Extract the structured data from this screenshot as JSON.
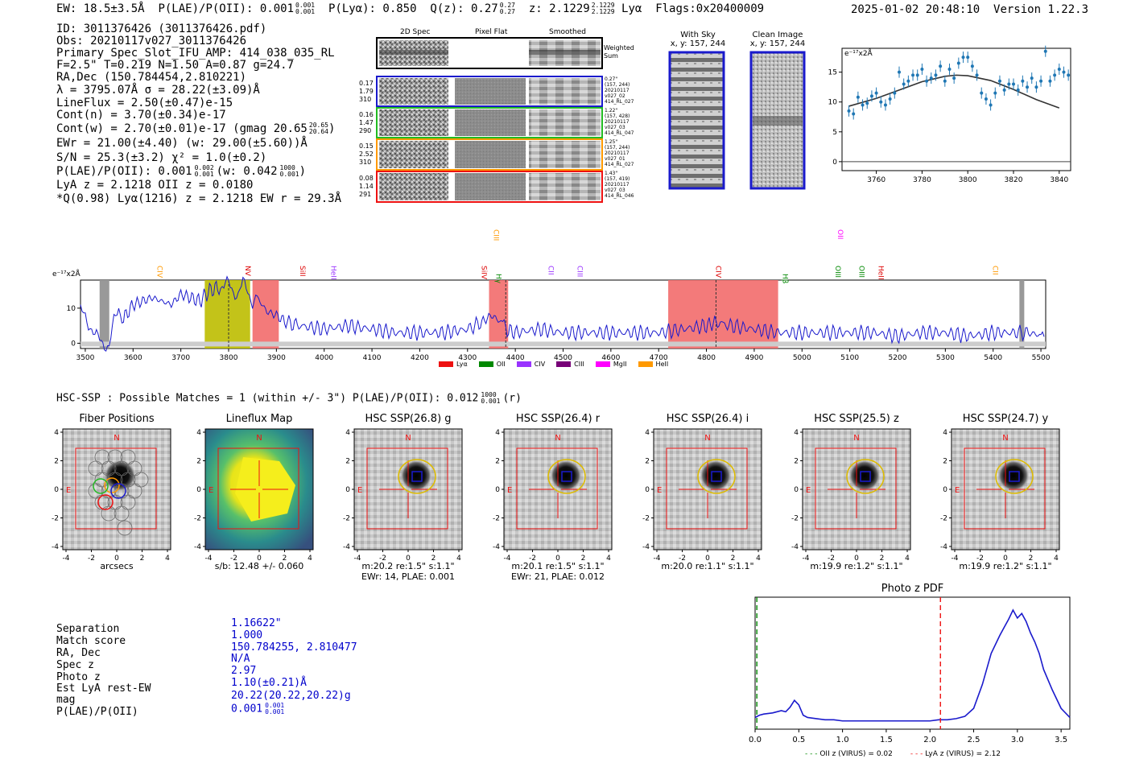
{
  "header": {
    "ew": "EW: 18.5±3.5Å",
    "plae": "P(LAE)/P(OII): 0.001",
    "plae_sup": "0.001",
    "plae_sub": "0.001",
    "plya": "P(Lyα): 0.850",
    "qz": "Q(z): 0.27",
    "qz_sup": "0.27",
    "qz_sub": "0.27",
    "z": "z: 2.1229",
    "z_sup": "2.1229",
    "z_sub": "2.1229",
    "line": "Lyα",
    "flags": "Flags:0x20400009",
    "timestamp": "2025-01-02 20:48:10",
    "version": "Version 1.22.3"
  },
  "info": {
    "id": "ID: 3011376426 (3011376426.pdf)",
    "obs": "Obs: 20210117v027_3011376426",
    "slot": "Primary Spec_Slot_IFU_AMP: 414_038_035_RL",
    "params": "F=2.5\"  T=0.219  N=1.50  A=0.87  g=24.7",
    "radec": "RA,Dec (150.784454,2.810221)",
    "lambda": "λ = 3795.07Å  σ = 28.22(±3.09)Å",
    "lineflux": "LineFlux = 2.50(±0.47)e-15",
    "contn": "Cont(n) = 3.70(±0.34)e-17",
    "contw": "Cont(w) = 2.70(±0.01)e-17 (gmag 20.65",
    "contw_sup": "20.65",
    "contw_sub": "20.64",
    "ewr": "EWr = 21.00(±4.40) (w: 29.00(±5.60))Å",
    "sn": "S/N = 25.3(±3.2)  χ² = 1.0(±0.2)",
    "plae": "P(LAE)/P(OII): 0.001",
    "plae_sup": "0.002",
    "plae_sub": "0.001",
    "plae_w": "(w: 0.042",
    "plae_w_sup": "1000",
    "plae_w_sub": "0.001",
    "lya_z": "LyA z = 2.1218   OII z = 0.0180",
    "q_line": "*Q(0.98) Lyα(1216) z = 2.1218   EW r = 29.3Å"
  },
  "cutouts": {
    "col_labels": [
      "2D Spec",
      "Pixel Flat",
      "Smoothed"
    ],
    "weighted_sum": "Weighted Sum",
    "fibers": [
      {
        "left": [
          "0.17",
          "1.79",
          "310"
        ],
        "right": [
          "0.27\"",
          "(157, 244)",
          "20210117",
          "v027_02",
          "414_RL_027"
        ],
        "color": "#1a1acc"
      },
      {
        "left": [
          "0.16",
          "1.47",
          "290"
        ],
        "right": [
          "1.22\"",
          "(157, 428)",
          "20210117",
          "v027_03",
          "414_RL_047"
        ],
        "color": "#22bb22"
      },
      {
        "left": [
          "0.15",
          "2.52",
          "310"
        ],
        "right": [
          "1.25\"",
          "(157, 244)",
          "20210117",
          "v027_01",
          "414_RL_027"
        ],
        "color": "#ff9900"
      },
      {
        "left": [
          "0.08",
          "1.14",
          "291"
        ],
        "right": [
          "1.43\"",
          "(157, 419)",
          "20210117",
          "v027_03",
          "414_RL_046"
        ],
        "color": "#ee1111"
      }
    ],
    "with_sky_title": "With Sky",
    "with_sky_xy": "x, y: 157, 244",
    "clean_title": "Clean Image",
    "clean_xy": "x, y: 157, 244"
  },
  "zoom_plot": {
    "unit": "e⁻¹⁷x2Å",
    "xticks": [
      "3760",
      "3780",
      "3800",
      "3820",
      "3840"
    ],
    "yticks": [
      "0",
      "5",
      "10",
      "15"
    ]
  },
  "spectrum": {
    "unit": "e⁻¹⁷x2Å",
    "xticks": [
      "3500",
      "3600",
      "3700",
      "3800",
      "3900",
      "4000",
      "4100",
      "4200",
      "4300",
      "4400",
      "4500",
      "4600",
      "4700",
      "4800",
      "4900",
      "5000",
      "5100",
      "5200",
      "5300",
      "5400",
      "5500"
    ],
    "yticks": [
      "0",
      "10"
    ],
    "line_labels": [
      {
        "text": "CIV",
        "color": "#ff9900"
      },
      {
        "text": "NV",
        "color": "#dd0000"
      },
      {
        "text": "SiII",
        "color": "#dd0000"
      },
      {
        "text": "HeII",
        "color": "#9933ff"
      },
      {
        "text": "SiIV",
        "color": "#dd0000"
      },
      {
        "text": "CIII",
        "color": "#ff9900"
      },
      {
        "text": "Hγ",
        "color": "#008800"
      },
      {
        "text": "CII",
        "color": "#9933ff"
      },
      {
        "text": "CIII",
        "color": "#9933ff"
      },
      {
        "text": "CIV",
        "color": "#dd0000"
      },
      {
        "text": "Hβ",
        "color": "#008800"
      },
      {
        "text": "OIII",
        "color": "#008800"
      },
      {
        "text": "OII",
        "color": "#ff00ff"
      },
      {
        "text": "OIII",
        "color": "#008800"
      },
      {
        "text": "HeII",
        "color": "#dd0000"
      },
      {
        "text": "CII",
        "color": "#ff9900"
      }
    ],
    "legend": [
      {
        "name": "Lyα",
        "color": "#ee1111"
      },
      {
        "name": "OII",
        "color": "#008800"
      },
      {
        "name": "CIV",
        "color": "#9933ff"
      },
      {
        "name": "CIII",
        "color": "#770077"
      },
      {
        "name": "MgII",
        "color": "#ff00ff"
      },
      {
        "name": "HeII",
        "color": "#ff9900"
      }
    ]
  },
  "hsc": {
    "title": "HSC-SSP : Possible Matches = 1 (within +/- 3\")  P(LAE)/P(OII): 0.012",
    "title_sup": "1000",
    "title_sub": "0.001",
    "title_end": "(r)",
    "panels": [
      {
        "title": "Fiber Positions",
        "cap1": "arcsecs",
        "cap2": ""
      },
      {
        "title": "Lineflux Map",
        "cap1": "s/b: 12.48 +/- 0.060",
        "cap2": ""
      },
      {
        "title": "HSC SSP(26.8) g",
        "cap1": "m:20.2  re:1.5\"  s:1.1\"",
        "cap2": "EWr: 14, PLAE: 0.001"
      },
      {
        "title": "HSC SSP(26.4) r",
        "cap1": "m:20.1  re:1.5\"  s:1.1\"",
        "cap2": "EWr: 21, PLAE: 0.012"
      },
      {
        "title": "HSC SSP(26.4) i",
        "cap1": "m:20.0  re:1.1\"  s:1.1\"",
        "cap2": ""
      },
      {
        "title": "HSC SSP(25.5) z",
        "cap1": "m:19.9  re:1.2\"  s:1.1\"",
        "cap2": ""
      },
      {
        "title": "HSC SSP(24.7) y",
        "cap1": "m:19.9  re:1.2\"  s:1.1\"",
        "cap2": ""
      }
    ],
    "axis_ticks": [
      "-4",
      "-2",
      "0",
      "2",
      "4"
    ],
    "compass_n": "N",
    "compass_e": "E"
  },
  "match": {
    "labels": [
      "Separation",
      "Match score",
      "RA, Dec",
      "Spec z",
      "Photo z",
      "Est LyA rest-EW",
      "mag",
      "P(LAE)/P(OII)"
    ],
    "values": [
      "1.16622\"",
      "1.000",
      "150.784255, 2.810477",
      "N/A",
      "2.97",
      "1.10(±0.21)Å",
      "20.22(20.22,20.22)g",
      "0.001"
    ],
    "plae_sup": "0.001",
    "plae_sub": "0.001"
  },
  "chart_data": [
    {
      "type": "line",
      "title": "Photo z PDF",
      "xlabel": "",
      "ylabel": "",
      "xlim": [
        0,
        3.6
      ],
      "xticks": [
        "0.0",
        "0.5",
        "1.0",
        "1.5",
        "2.0",
        "2.5",
        "3.0",
        "3.5"
      ],
      "series": [
        {
          "name": "PDF",
          "x": [
            0.0,
            0.05,
            0.1,
            0.2,
            0.3,
            0.35,
            0.4,
            0.45,
            0.5,
            0.55,
            0.6,
            0.7,
            0.8,
            0.9,
            1.0,
            1.2,
            1.4,
            1.6,
            1.8,
            2.0,
            2.1,
            2.2,
            2.3,
            2.4,
            2.5,
            2.6,
            2.7,
            2.8,
            2.85,
            2.9,
            2.95,
            3.0,
            3.05,
            3.1,
            3.15,
            3.2,
            3.25,
            3.3,
            3.4,
            3.5,
            3.6
          ],
          "y": [
            0.06,
            0.08,
            0.09,
            0.1,
            0.12,
            0.11,
            0.15,
            0.21,
            0.17,
            0.08,
            0.06,
            0.05,
            0.04,
            0.04,
            0.03,
            0.03,
            0.03,
            0.03,
            0.03,
            0.03,
            0.04,
            0.04,
            0.05,
            0.07,
            0.14,
            0.35,
            0.62,
            0.78,
            0.85,
            0.92,
            1.0,
            0.93,
            0.97,
            0.9,
            0.8,
            0.72,
            0.62,
            0.48,
            0.3,
            0.14,
            0.06
          ]
        }
      ],
      "vlines": [
        {
          "x": 0.02,
          "label": "OII z (VIRUS) = 0.02",
          "color": "#008800"
        },
        {
          "x": 2.12,
          "label": "LyA z (VIRUS) = 2.12",
          "color": "#ee1111"
        }
      ]
    },
    {
      "type": "scatter",
      "title": "",
      "xlabel": "",
      "ylabel": "e-17x2A",
      "xlim": [
        3745,
        3845
      ],
      "ylim": [
        -1.5,
        19
      ],
      "x": [
        3748,
        3750,
        3752,
        3754,
        3756,
        3758,
        3760,
        3762,
        3764,
        3766,
        3768,
        3770,
        3772,
        3774,
        3776,
        3778,
        3780,
        3782,
        3784,
        3786,
        3788,
        3790,
        3792,
        3794,
        3796,
        3798,
        3800,
        3802,
        3804,
        3806,
        3808,
        3810,
        3812,
        3814,
        3816,
        3818,
        3820,
        3822,
        3824,
        3826,
        3828,
        3830,
        3832,
        3834,
        3836,
        3838,
        3840,
        3842,
        3844
      ],
      "y": [
        8.5,
        8.0,
        10.8,
        9.5,
        9.8,
        11.0,
        11.5,
        10.0,
        9.5,
        10.5,
        11.5,
        15.0,
        13.0,
        13.5,
        14.5,
        14.5,
        15.5,
        13.5,
        14.0,
        14.5,
        16.0,
        13.5,
        15.5,
        14.0,
        16.5,
        17.5,
        17.5,
        16.0,
        14.5,
        11.5,
        10.5,
        9.5,
        11.5,
        13.5,
        12.0,
        13.0,
        13.0,
        12.0,
        13.5,
        12.5,
        14.0,
        12.5,
        13.5,
        18.5,
        13.5,
        14.5,
        15.5,
        15.0,
        14.5
      ],
      "model_x": [
        3748,
        3760,
        3770,
        3780,
        3790,
        3795,
        3800,
        3810,
        3820,
        3830,
        3840
      ],
      "model_y": [
        9.3,
        10.6,
        12.0,
        13.4,
        14.3,
        14.5,
        14.4,
        13.6,
        12.1,
        10.4,
        9.0
      ]
    },
    {
      "type": "line",
      "title": "",
      "xlabel": "",
      "ylabel": "e-17x2A",
      "xlim": [
        3490,
        5510
      ],
      "ylim": [
        -1.5,
        18
      ],
      "series": [
        {
          "name": "spectrum",
          "x": [
            3490,
            3500,
            3510,
            3520,
            3530,
            3540,
            3550,
            3560,
            3570,
            3580,
            3600,
            3620,
            3640,
            3660,
            3680,
            3700,
            3720,
            3740,
            3760,
            3780,
            3790,
            3800,
            3810,
            3820,
            3830,
            3840,
            3850,
            3860,
            3880,
            3900,
            3920,
            3950,
            4000,
            4050,
            4100,
            4150,
            4200,
            4250,
            4300,
            4330,
            4350,
            4370,
            4380,
            4400,
            4450,
            4500,
            4550,
            4600,
            4650,
            4700,
            4750,
            4800,
            4820,
            4850,
            4900,
            4950,
            5000,
            5050,
            5100,
            5150,
            5200,
            5250,
            5300,
            5350,
            5400,
            5450,
            5480,
            5500,
            5510
          ],
          "y": [
            9,
            8,
            5,
            2,
            1,
            0,
            -1,
            6,
            10,
            7,
            11,
            12,
            13,
            12,
            11,
            14,
            13,
            12,
            15,
            16,
            16,
            17,
            15,
            14,
            17,
            15,
            12,
            13,
            9,
            8,
            6,
            5,
            4,
            5,
            4,
            3,
            3,
            3,
            4,
            6,
            8,
            6,
            4,
            3,
            4,
            3,
            3,
            3,
            3,
            3,
            4,
            5,
            6,
            5,
            4,
            3,
            3,
            3,
            3,
            3,
            2,
            3,
            3,
            2,
            3,
            3,
            3,
            2,
            3
          ]
        }
      ],
      "shaded": [
        {
          "from": 3750,
          "to": 3845,
          "color": "olive"
        },
        {
          "from": 3850,
          "to": 3905,
          "color": "red"
        },
        {
          "from": 4345,
          "to": 4385,
          "color": "red"
        },
        {
          "from": 4720,
          "to": 4950,
          "color": "red"
        }
      ]
    }
  ]
}
